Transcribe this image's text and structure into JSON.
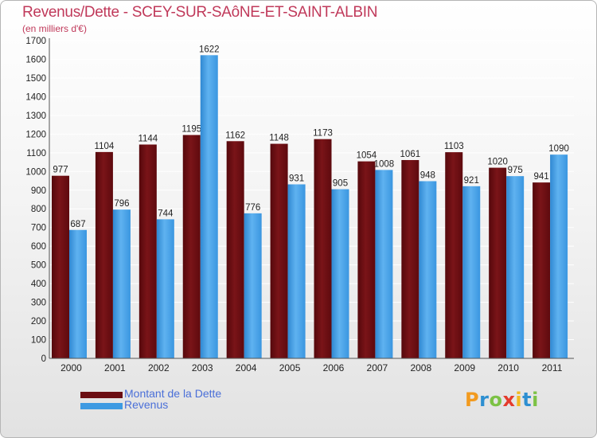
{
  "header": {
    "title": "Revenus/Dette - SCEY-SUR-SAôNE-ET-SAINT-ALBIN",
    "subtitle": "(en milliers d'€)"
  },
  "legend": [
    {
      "label": "Montant de la Dette",
      "color": "#6b0e12"
    },
    {
      "label": "Revenus",
      "color": "#3d9ae2"
    }
  ],
  "logo": {
    "letters": [
      "P",
      "r",
      "o",
      "x",
      "i",
      "t",
      "i"
    ],
    "colors": [
      "#f29a1f",
      "#2d8fd1",
      "#7cc245",
      "#e43b2c",
      "#f2b91f",
      "#2d8fd1",
      "#7cc245"
    ]
  },
  "colors": {
    "dette": "#6b0e12",
    "revenus": "#3d9ae2",
    "title": "#c0395a"
  },
  "chart_data": {
    "type": "bar",
    "categories": [
      "2000",
      "2001",
      "2002",
      "2003",
      "2004",
      "2005",
      "2006",
      "2007",
      "2008",
      "2009",
      "2010",
      "2011"
    ],
    "series": [
      {
        "name": "Montant de la Dette",
        "values": [
          977,
          1104,
          1144,
          1195,
          1162,
          1148,
          1173,
          1054,
          1061,
          1103,
          1020,
          941
        ]
      },
      {
        "name": "Revenus",
        "values": [
          687,
          796,
          744,
          1622,
          776,
          931,
          905,
          1008,
          948,
          921,
          975,
          1090
        ]
      }
    ],
    "title": "Revenus/Dette - SCEY-SUR-SAôNE-ET-SAINT-ALBIN",
    "ylabel": "(en milliers d'€)",
    "xlabel": "",
    "ylim": [
      0,
      1700
    ],
    "ytick_step": 100,
    "grid": true,
    "legend_position": "bottom-left"
  }
}
